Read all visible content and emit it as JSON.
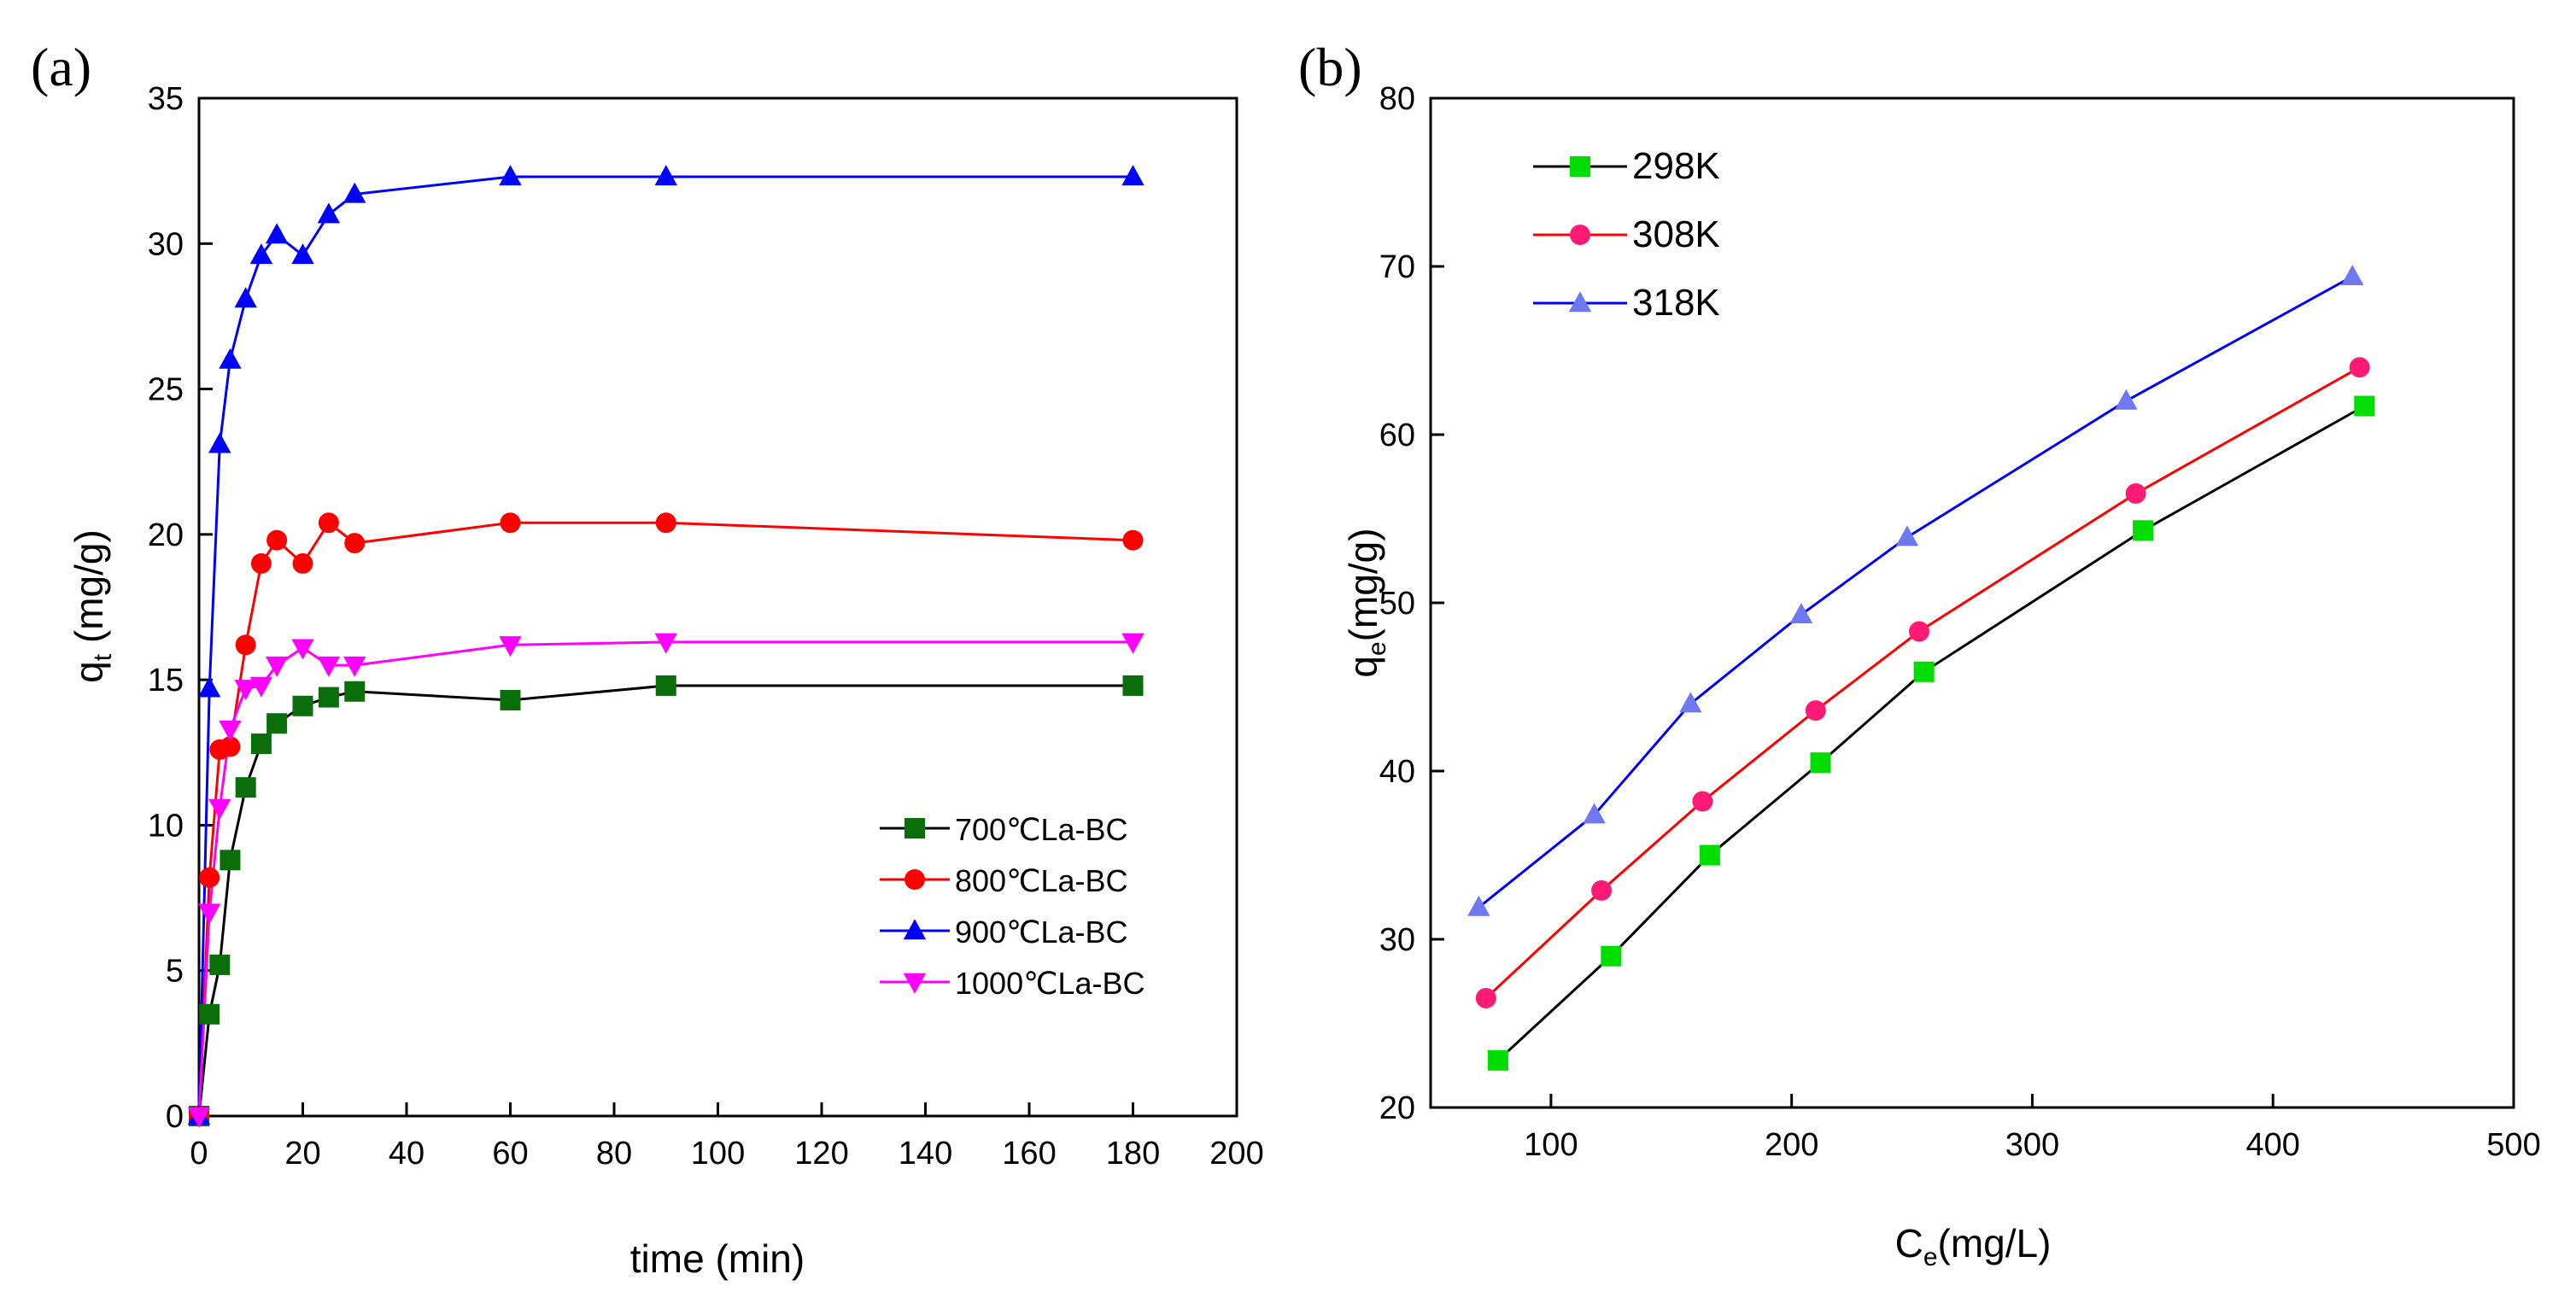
{
  "chart_data": [
    {
      "panel": "(a)",
      "type": "line",
      "xlabel": "time (min)",
      "ylabel": "q",
      "ylabel_sub": "t",
      "ylabel_unit": "(mg/g)",
      "xlim": [
        0,
        200
      ],
      "ylim": [
        0,
        35
      ],
      "xticks": [
        0,
        20,
        40,
        60,
        80,
        100,
        120,
        140,
        160,
        180,
        200
      ],
      "yticks": [
        0,
        5,
        10,
        15,
        20,
        25,
        30,
        35
      ],
      "legend_position": "bottom-right",
      "x": [
        0,
        2,
        4,
        6,
        9,
        12,
        15,
        20,
        25,
        30,
        60,
        90,
        180
      ],
      "series": [
        {
          "name": "700℃La-BC",
          "color": "#0a6e0a",
          "line_color": "#000000",
          "marker": "square",
          "values": [
            0,
            3.5,
            5.2,
            8.8,
            11.3,
            12.8,
            13.5,
            14.1,
            14.4,
            14.6,
            14.3,
            14.8,
            14.8
          ]
        },
        {
          "name": "800℃La-BC",
          "color": "#ff0000",
          "line_color": "#ff0000",
          "marker": "circle",
          "values": [
            0,
            8.2,
            12.6,
            12.7,
            16.2,
            19.0,
            19.8,
            19.0,
            20.4,
            19.7,
            20.4,
            20.4,
            19.8
          ]
        },
        {
          "name": "900℃La-BC",
          "color": "#0000ff",
          "line_color": "#0000ff",
          "marker": "triangle-up",
          "values": [
            0,
            14.7,
            23.1,
            26.0,
            28.1,
            29.6,
            30.3,
            29.6,
            31.0,
            31.7,
            32.3,
            32.3,
            32.3
          ]
        },
        {
          "name": "1000℃La-BC",
          "color": "#ff00ff",
          "line_color": "#ff00ff",
          "marker": "triangle-down",
          "values": [
            0,
            7.0,
            10.6,
            13.3,
            14.7,
            14.8,
            15.5,
            16.1,
            15.5,
            15.5,
            16.2,
            16.3,
            16.3
          ]
        }
      ]
    },
    {
      "panel": "(b)",
      "type": "line",
      "xlabel": "C",
      "xlabel_sub": "e",
      "xlabel_unit": "(mg/L)",
      "ylabel": "q",
      "ylabel_sub": "e",
      "ylabel_unit": "(mg/g)",
      "xlim": [
        50,
        500
      ],
      "ylim": [
        20,
        80
      ],
      "xticks": [
        100,
        200,
        300,
        400,
        500
      ],
      "yticks": [
        20,
        30,
        40,
        50,
        60,
        70,
        80
      ],
      "legend_position": "top-left",
      "series": [
        {
          "name": "298K",
          "color": "#00dd00",
          "line_color": "#000000",
          "marker": "square",
          "points": [
            [
              78,
              22.8
            ],
            [
              125,
              29.0
            ],
            [
              166,
              35.0
            ],
            [
              212,
              40.5
            ],
            [
              255,
              45.9
            ],
            [
              346,
              54.3
            ],
            [
              438,
              61.7
            ]
          ]
        },
        {
          "name": "308K",
          "color": "#ff1a75",
          "line_color": "#ff0000",
          "marker": "circle",
          "points": [
            [
              73,
              26.5
            ],
            [
              121,
              32.9
            ],
            [
              163,
              38.2
            ],
            [
              210,
              43.6
            ],
            [
              253,
              48.3
            ],
            [
              343,
              56.5
            ],
            [
              436,
              64.0
            ]
          ]
        },
        {
          "name": "318K",
          "color": "#6e78f0",
          "line_color": "#0000ff",
          "marker": "triangle-up",
          "points": [
            [
              70,
              31.9
            ],
            [
              118,
              37.4
            ],
            [
              158,
              44.0
            ],
            [
              204,
              49.3
            ],
            [
              248,
              53.9
            ],
            [
              339,
              62.0
            ],
            [
              433,
              69.4
            ]
          ]
        }
      ]
    }
  ]
}
